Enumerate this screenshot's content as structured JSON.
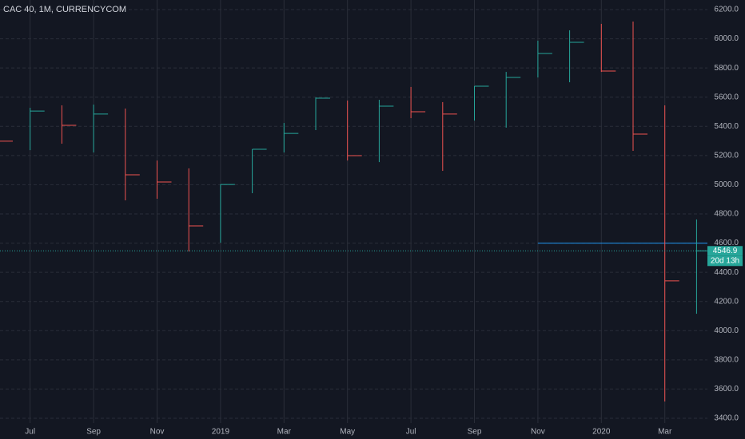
{
  "chart_data": {
    "type": "hlc",
    "title": "CAC 40, 1M, CURRENCYCOM",
    "categories": [
      null,
      "Jul",
      null,
      "Sep",
      null,
      "Nov",
      null,
      "2019",
      null,
      "Mar",
      null,
      "May",
      null,
      "Jul",
      null,
      "Sep",
      null,
      "Nov",
      null,
      "2020",
      null,
      "Mar",
      null
    ],
    "high": [
      null,
      5527,
      5544,
      5549,
      5522,
      5166,
      5112,
      5002,
      5243,
      5423,
      5598,
      5577,
      5582,
      5670,
      5566,
      5675,
      5773,
      5987,
      6058,
      6102,
      6118,
      5544,
      4762
    ],
    "low": [
      null,
      5237,
      5281,
      5221,
      4893,
      4904,
      4543,
      4603,
      4942,
      5221,
      5374,
      5166,
      5155,
      5456,
      5095,
      5440,
      5391,
      5735,
      5702,
      5773,
      5232,
      3515,
      4116
    ],
    "close": [
      5298,
      5505,
      5407,
      5484,
      5068,
      5019,
      4718,
      5002,
      5243,
      5352,
      5593,
      5199,
      5538,
      5500,
      5484,
      5675,
      5735,
      5899,
      5976,
      5779,
      5347,
      4341,
      4546.9
    ],
    "up_color": "#26a69a",
    "down_color": "#ef5350",
    "ylim": [
      3400,
      6200
    ],
    "yticks": [
      {
        "value": 3400,
        "label": "3400.0"
      },
      {
        "value": 3600,
        "label": "3600.0"
      },
      {
        "value": 3800,
        "label": "3800.0"
      },
      {
        "value": 4000,
        "label": "4000.0"
      },
      {
        "value": 4200,
        "label": "4200.0"
      },
      {
        "value": 4400,
        "label": "4400.0"
      },
      {
        "value": 4600,
        "label": "4600.0"
      },
      {
        "value": 4800,
        "label": "4800.0"
      },
      {
        "value": 5000,
        "label": "5000.0"
      },
      {
        "value": 5200,
        "label": "5200.0"
      },
      {
        "value": 5400,
        "label": "5400.0"
      },
      {
        "value": 5600,
        "label": "5600.0"
      },
      {
        "value": 5800,
        "label": "5800.0"
      },
      {
        "value": 6000,
        "label": "6000.0"
      },
      {
        "value": 6200,
        "label": "6200.0"
      }
    ],
    "grid": true,
    "last_price": 4546.9,
    "countdown": "20d 13h",
    "hline": {
      "value": 4600,
      "from_index": 17,
      "color": "#2196f3"
    }
  }
}
